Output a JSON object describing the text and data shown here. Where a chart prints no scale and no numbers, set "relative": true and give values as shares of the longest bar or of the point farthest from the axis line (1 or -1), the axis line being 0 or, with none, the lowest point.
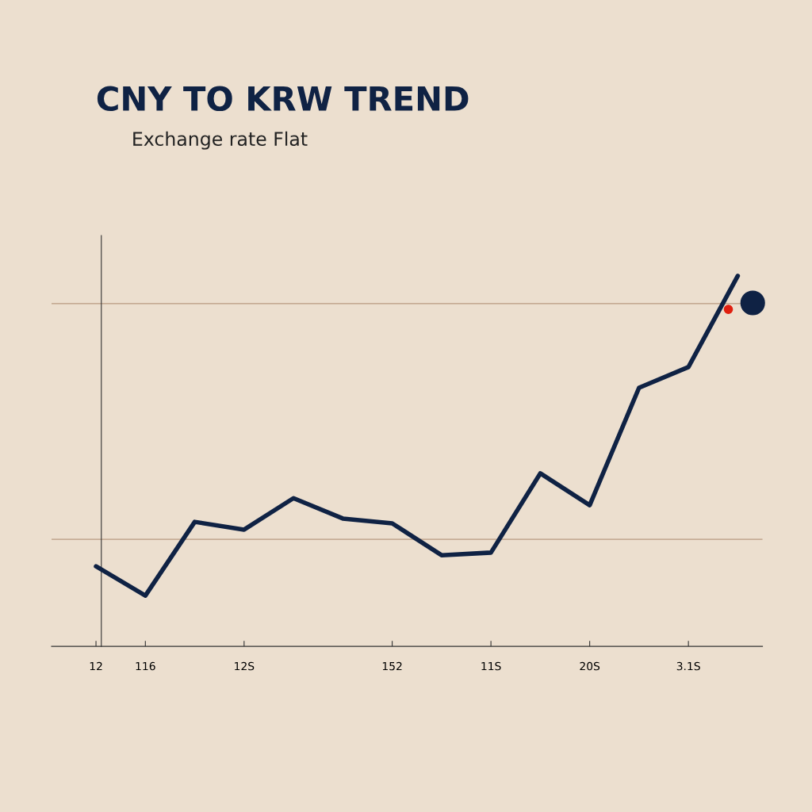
{
  "chart_data": {
    "type": "line",
    "title": "CNY TO KRW TREND",
    "subtitle": "Exchange rate Flat",
    "relative": true,
    "categories": [
      "12",
      "116",
      null,
      "12S",
      null,
      null,
      "152",
      null,
      "11S",
      null,
      "20S",
      null,
      "3.1S",
      null
    ],
    "tick_labels": "x",
    "series": [
      {
        "color": "#0f2244",
        "values": [
          0.216,
          0.137,
          0.336,
          0.315,
          0.4,
          0.345,
          0.332,
          0.246,
          0.253,
          0.467,
          0.381,
          0.698,
          0.754,
          1
        ]
      }
    ],
    "ref_lines": [
      {
        "axis": "y",
        "value": 0.925,
        "color": "#b89a80"
      },
      {
        "axis": "y",
        "value": 0.289,
        "color": "#b89a80"
      }
    ],
    "grid": false,
    "legend": false,
    "marker": "none",
    "line_style": "solid"
  }
}
